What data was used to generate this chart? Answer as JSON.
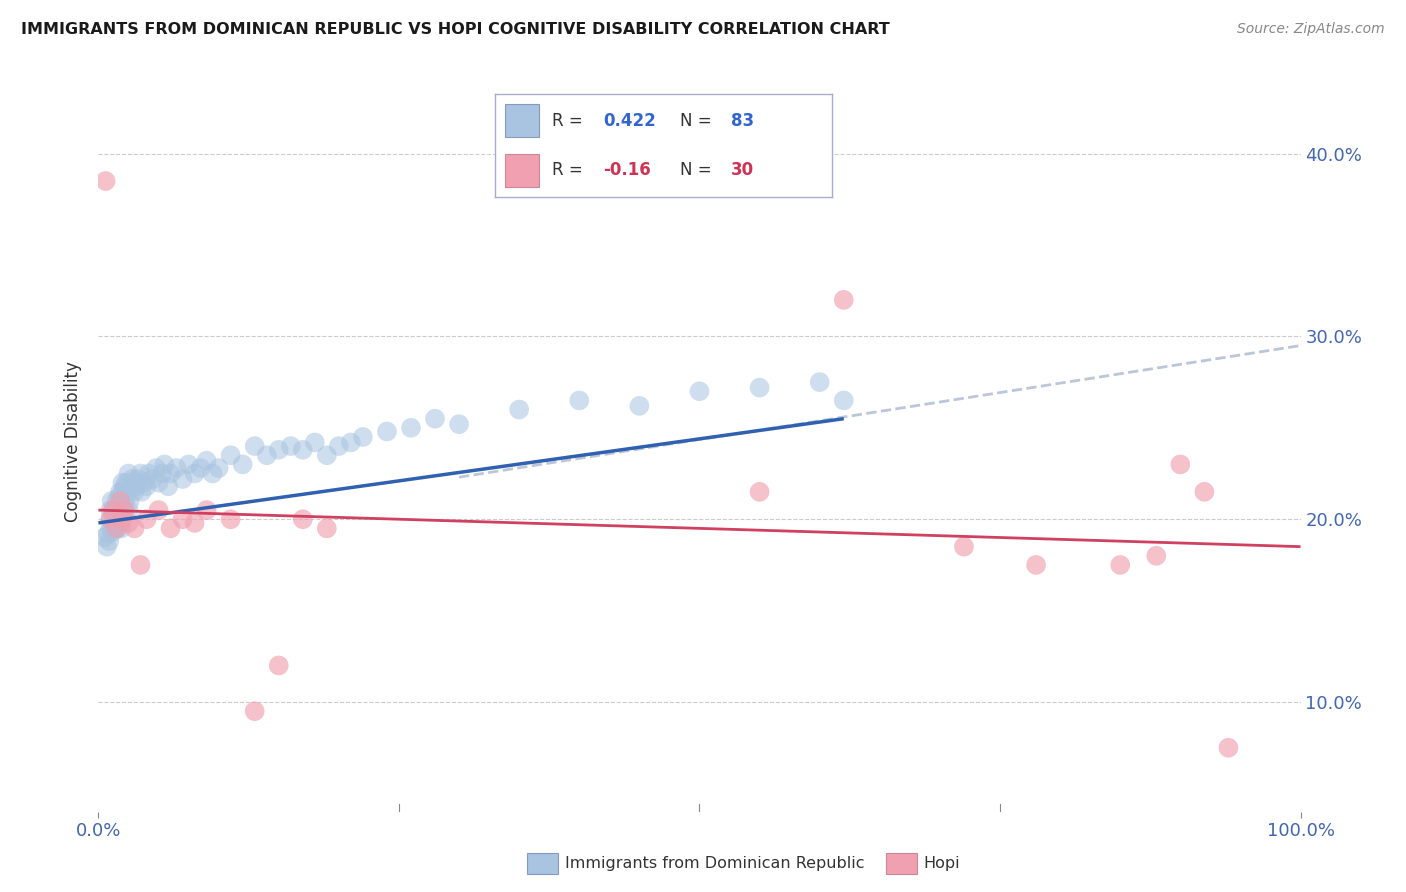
{
  "title": "IMMIGRANTS FROM DOMINICAN REPUBLIC VS HOPI COGNITIVE DISABILITY CORRELATION CHART",
  "source": "Source: ZipAtlas.com",
  "ylabel": "Cognitive Disability",
  "xlim": [
    0.0,
    1.0
  ],
  "ylim": [
    0.04,
    0.445
  ],
  "yticks": [
    0.1,
    0.2,
    0.3,
    0.4
  ],
  "ytick_labels": [
    "10.0%",
    "20.0%",
    "30.0%",
    "40.0%"
  ],
  "xticks": [
    0.0,
    1.0
  ],
  "xtick_labels": [
    "0.0%",
    "100.0%"
  ],
  "blue_R": 0.422,
  "blue_N": 83,
  "pink_R": -0.16,
  "pink_N": 30,
  "blue_color": "#a8c4e0",
  "blue_line_color": "#3060b0",
  "pink_color": "#f0a0b0",
  "pink_line_color": "#d04060",
  "dashed_line_color": "#b0bcd0",
  "legend_label_blue": "Immigrants from Dominican Republic",
  "legend_label_pink": "Hopi",
  "blue_trend_x": [
    0.0,
    0.62
  ],
  "blue_trend_y": [
    0.198,
    0.255
  ],
  "pink_trend_x": [
    0.0,
    1.0
  ],
  "pink_trend_y": [
    0.205,
    0.185
  ],
  "dashed_trend_x": [
    0.3,
    1.0
  ],
  "dashed_trend_y": [
    0.223,
    0.295
  ],
  "blue_scatter_x": [
    0.005,
    0.007,
    0.008,
    0.009,
    0.01,
    0.01,
    0.01,
    0.011,
    0.012,
    0.012,
    0.013,
    0.013,
    0.014,
    0.014,
    0.015,
    0.015,
    0.016,
    0.016,
    0.017,
    0.017,
    0.018,
    0.018,
    0.019,
    0.019,
    0.02,
    0.02,
    0.021,
    0.022,
    0.022,
    0.023,
    0.024,
    0.025,
    0.025,
    0.026,
    0.027,
    0.028,
    0.03,
    0.031,
    0.032,
    0.033,
    0.035,
    0.036,
    0.038,
    0.04,
    0.042,
    0.045,
    0.048,
    0.05,
    0.053,
    0.055,
    0.058,
    0.06,
    0.065,
    0.07,
    0.075,
    0.08,
    0.085,
    0.09,
    0.095,
    0.1,
    0.11,
    0.12,
    0.13,
    0.14,
    0.15,
    0.16,
    0.17,
    0.18,
    0.19,
    0.2,
    0.21,
    0.22,
    0.24,
    0.26,
    0.28,
    0.3,
    0.35,
    0.4,
    0.45,
    0.5,
    0.55,
    0.6,
    0.62
  ],
  "blue_scatter_y": [
    0.19,
    0.185,
    0.192,
    0.188,
    0.195,
    0.2,
    0.205,
    0.21,
    0.193,
    0.198,
    0.2,
    0.205,
    0.195,
    0.202,
    0.198,
    0.21,
    0.195,
    0.205,
    0.2,
    0.212,
    0.198,
    0.215,
    0.2,
    0.195,
    0.215,
    0.22,
    0.205,
    0.218,
    0.21,
    0.22,
    0.215,
    0.205,
    0.225,
    0.21,
    0.218,
    0.222,
    0.215,
    0.22,
    0.218,
    0.222,
    0.225,
    0.215,
    0.22,
    0.218,
    0.225,
    0.222,
    0.228,
    0.22,
    0.225,
    0.23,
    0.218,
    0.225,
    0.228,
    0.222,
    0.23,
    0.225,
    0.228,
    0.232,
    0.225,
    0.228,
    0.235,
    0.23,
    0.24,
    0.235,
    0.238,
    0.24,
    0.238,
    0.242,
    0.235,
    0.24,
    0.242,
    0.245,
    0.248,
    0.25,
    0.255,
    0.252,
    0.26,
    0.265,
    0.262,
    0.27,
    0.272,
    0.275,
    0.265
  ],
  "pink_scatter_x": [
    0.006,
    0.01,
    0.012,
    0.015,
    0.018,
    0.02,
    0.022,
    0.025,
    0.03,
    0.035,
    0.04,
    0.05,
    0.06,
    0.07,
    0.08,
    0.09,
    0.11,
    0.13,
    0.15,
    0.17,
    0.19,
    0.55,
    0.62,
    0.72,
    0.78,
    0.85,
    0.88,
    0.9,
    0.92,
    0.94
  ],
  "pink_scatter_y": [
    0.385,
    0.2,
    0.205,
    0.195,
    0.21,
    0.2,
    0.205,
    0.198,
    0.195,
    0.175,
    0.2,
    0.205,
    0.195,
    0.2,
    0.198,
    0.205,
    0.2,
    0.095,
    0.12,
    0.2,
    0.195,
    0.215,
    0.32,
    0.185,
    0.175,
    0.175,
    0.18,
    0.23,
    0.215,
    0.075
  ]
}
